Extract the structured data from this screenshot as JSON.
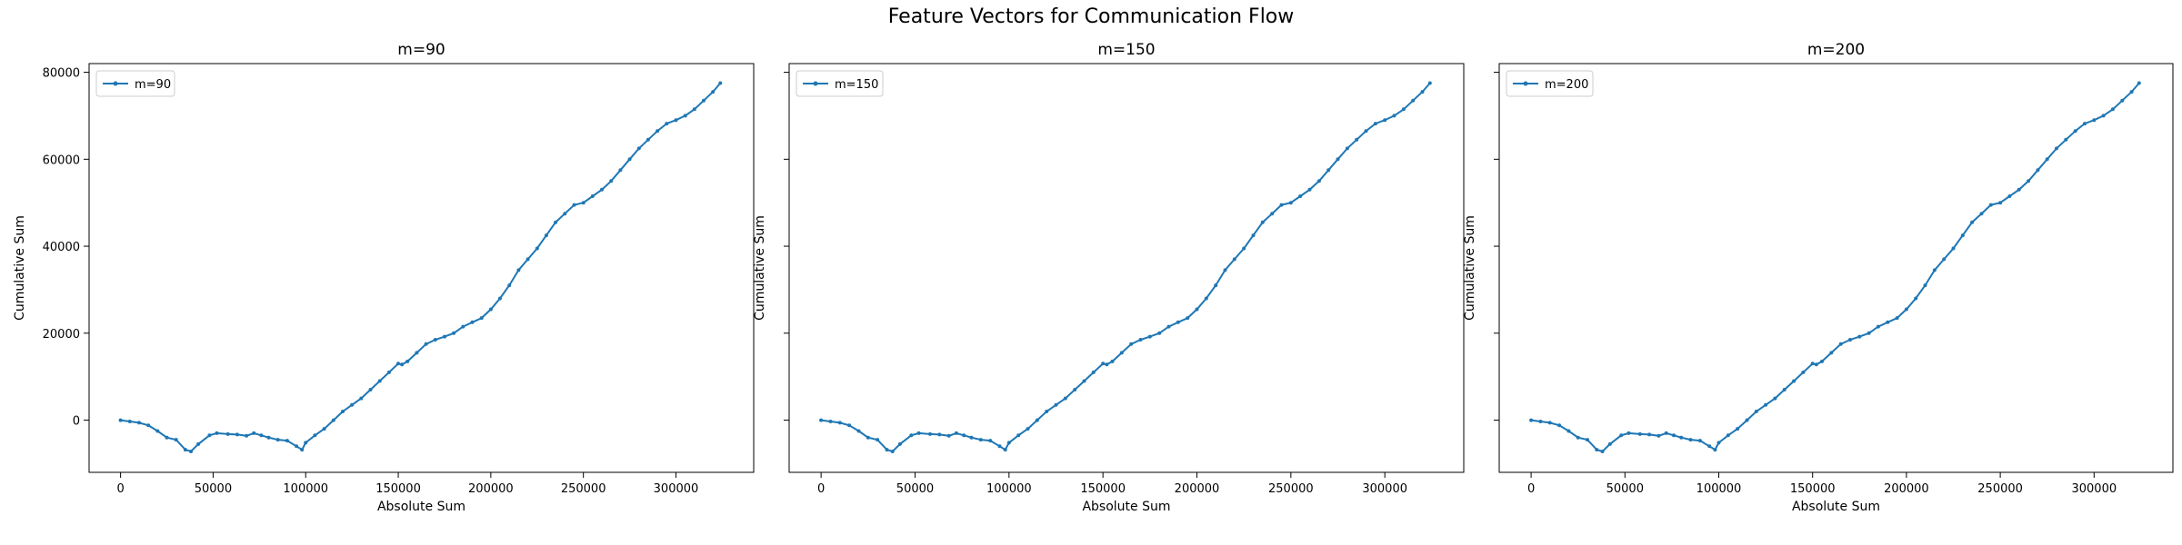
{
  "figure": {
    "title": "Feature Vectors for Communication Flow"
  },
  "colors": {
    "series": "#1f77b4",
    "axes": "#000000",
    "background": "#ffffff"
  },
  "chart_data": [
    {
      "type": "line",
      "title": "m=90",
      "xlabel": "Absolute Sum",
      "ylabel": "Cumulative Sum",
      "xlim": [
        -17000,
        342000
      ],
      "ylim": [
        -12000,
        82000
      ],
      "xticks": [
        0,
        50000,
        100000,
        150000,
        200000,
        250000,
        300000
      ],
      "yticks": [
        0,
        20000,
        40000,
        60000,
        80000
      ],
      "ytick_labels_visible": true,
      "legend": {
        "position": "upper-left",
        "entries": [
          "m=90"
        ]
      },
      "grid": false,
      "marker": "point",
      "series": [
        {
          "name": "m=90",
          "x": [
            0,
            5000,
            10000,
            15000,
            20000,
            25000,
            30000,
            35000,
            38000,
            42000,
            48000,
            52000,
            58000,
            63000,
            68000,
            72000,
            76000,
            80000,
            85000,
            90000,
            95000,
            98000,
            100000,
            105000,
            110000,
            115000,
            120000,
            125000,
            130000,
            135000,
            140000,
            145000,
            150000,
            152000,
            155000,
            160000,
            165000,
            170000,
            175000,
            180000,
            185000,
            190000,
            195000,
            200000,
            205000,
            210000,
            215000,
            220000,
            225000,
            230000,
            235000,
            240000,
            245000,
            250000,
            255000,
            260000,
            265000,
            270000,
            275000,
            280000,
            285000,
            290000,
            295000,
            300000,
            305000,
            310000,
            315000,
            320000,
            324000
          ],
          "y": [
            0,
            -300,
            -600,
            -1200,
            -2500,
            -4000,
            -4500,
            -6800,
            -7200,
            -5500,
            -3500,
            -3000,
            -3200,
            -3300,
            -3600,
            -3000,
            -3500,
            -4000,
            -4500,
            -4700,
            -6000,
            -6800,
            -5200,
            -3500,
            -2000,
            0,
            2000,
            3500,
            5000,
            7000,
            9000,
            11000,
            13000,
            12800,
            13500,
            15500,
            17500,
            18500,
            19200,
            20000,
            21500,
            22500,
            23500,
            25500,
            28000,
            31000,
            34500,
            37000,
            39500,
            42500,
            45500,
            47500,
            49500,
            50000,
            51500,
            53000,
            55000,
            57500,
            60000,
            62500,
            64500,
            66500,
            68200,
            69000,
            70000,
            71500,
            73500,
            75500,
            77500
          ]
        }
      ]
    },
    {
      "type": "line",
      "title": "m=150",
      "xlabel": "Absolute Sum",
      "ylabel": "Cumulative Sum",
      "xlim": [
        -17000,
        342000
      ],
      "ylim": [
        -12000,
        82000
      ],
      "xticks": [
        0,
        50000,
        100000,
        150000,
        200000,
        250000,
        300000
      ],
      "yticks": [
        0,
        20000,
        40000,
        60000,
        80000
      ],
      "ytick_labels_visible": false,
      "legend": {
        "position": "upper-left",
        "entries": [
          "m=150"
        ]
      },
      "grid": false,
      "marker": "point",
      "series": [
        {
          "name": "m=150",
          "x": [
            0,
            5000,
            10000,
            15000,
            20000,
            25000,
            30000,
            35000,
            38000,
            42000,
            48000,
            52000,
            58000,
            63000,
            68000,
            72000,
            76000,
            80000,
            85000,
            90000,
            95000,
            98000,
            100000,
            105000,
            110000,
            115000,
            120000,
            125000,
            130000,
            135000,
            140000,
            145000,
            150000,
            152000,
            155000,
            160000,
            165000,
            170000,
            175000,
            180000,
            185000,
            190000,
            195000,
            200000,
            205000,
            210000,
            215000,
            220000,
            225000,
            230000,
            235000,
            240000,
            245000,
            250000,
            255000,
            260000,
            265000,
            270000,
            275000,
            280000,
            285000,
            290000,
            295000,
            300000,
            305000,
            310000,
            315000,
            320000,
            324000
          ],
          "y": [
            0,
            -300,
            -600,
            -1200,
            -2500,
            -4000,
            -4500,
            -6800,
            -7200,
            -5500,
            -3500,
            -3000,
            -3200,
            -3300,
            -3600,
            -3000,
            -3500,
            -4000,
            -4500,
            -4700,
            -6000,
            -6800,
            -5200,
            -3500,
            -2000,
            0,
            2000,
            3500,
            5000,
            7000,
            9000,
            11000,
            13000,
            12800,
            13500,
            15500,
            17500,
            18500,
            19200,
            20000,
            21500,
            22500,
            23500,
            25500,
            28000,
            31000,
            34500,
            37000,
            39500,
            42500,
            45500,
            47500,
            49500,
            50000,
            51500,
            53000,
            55000,
            57500,
            60000,
            62500,
            64500,
            66500,
            68200,
            69000,
            70000,
            71500,
            73500,
            75500,
            77500
          ]
        }
      ]
    },
    {
      "type": "line",
      "title": "m=200",
      "xlabel": "Absolute Sum",
      "ylabel": "Cumulative Sum",
      "xlim": [
        -17000,
        342000
      ],
      "ylim": [
        -12000,
        82000
      ],
      "xticks": [
        0,
        50000,
        100000,
        150000,
        200000,
        250000,
        300000
      ],
      "yticks": [
        0,
        20000,
        40000,
        60000,
        80000
      ],
      "ytick_labels_visible": false,
      "legend": {
        "position": "upper-left",
        "entries": [
          "m=200"
        ]
      },
      "grid": false,
      "marker": "point",
      "series": [
        {
          "name": "m=200",
          "x": [
            0,
            5000,
            10000,
            15000,
            20000,
            25000,
            30000,
            35000,
            38000,
            42000,
            48000,
            52000,
            58000,
            63000,
            68000,
            72000,
            76000,
            80000,
            85000,
            90000,
            95000,
            98000,
            100000,
            105000,
            110000,
            115000,
            120000,
            125000,
            130000,
            135000,
            140000,
            145000,
            150000,
            152000,
            155000,
            160000,
            165000,
            170000,
            175000,
            180000,
            185000,
            190000,
            195000,
            200000,
            205000,
            210000,
            215000,
            220000,
            225000,
            230000,
            235000,
            240000,
            245000,
            250000,
            255000,
            260000,
            265000,
            270000,
            275000,
            280000,
            285000,
            290000,
            295000,
            300000,
            305000,
            310000,
            315000,
            320000,
            324000
          ],
          "y": [
            0,
            -300,
            -600,
            -1200,
            -2500,
            -4000,
            -4500,
            -6800,
            -7200,
            -5500,
            -3500,
            -3000,
            -3200,
            -3300,
            -3600,
            -3000,
            -3500,
            -4000,
            -4500,
            -4700,
            -6000,
            -6800,
            -5200,
            -3500,
            -2000,
            0,
            2000,
            3500,
            5000,
            7000,
            9000,
            11000,
            13000,
            12800,
            13500,
            15500,
            17500,
            18500,
            19200,
            20000,
            21500,
            22500,
            23500,
            25500,
            28000,
            31000,
            34500,
            37000,
            39500,
            42500,
            45500,
            47500,
            49500,
            50000,
            51500,
            53000,
            55000,
            57500,
            60000,
            62500,
            64500,
            66500,
            68200,
            69000,
            70000,
            71500,
            73500,
            75500,
            77500
          ]
        }
      ]
    }
  ]
}
